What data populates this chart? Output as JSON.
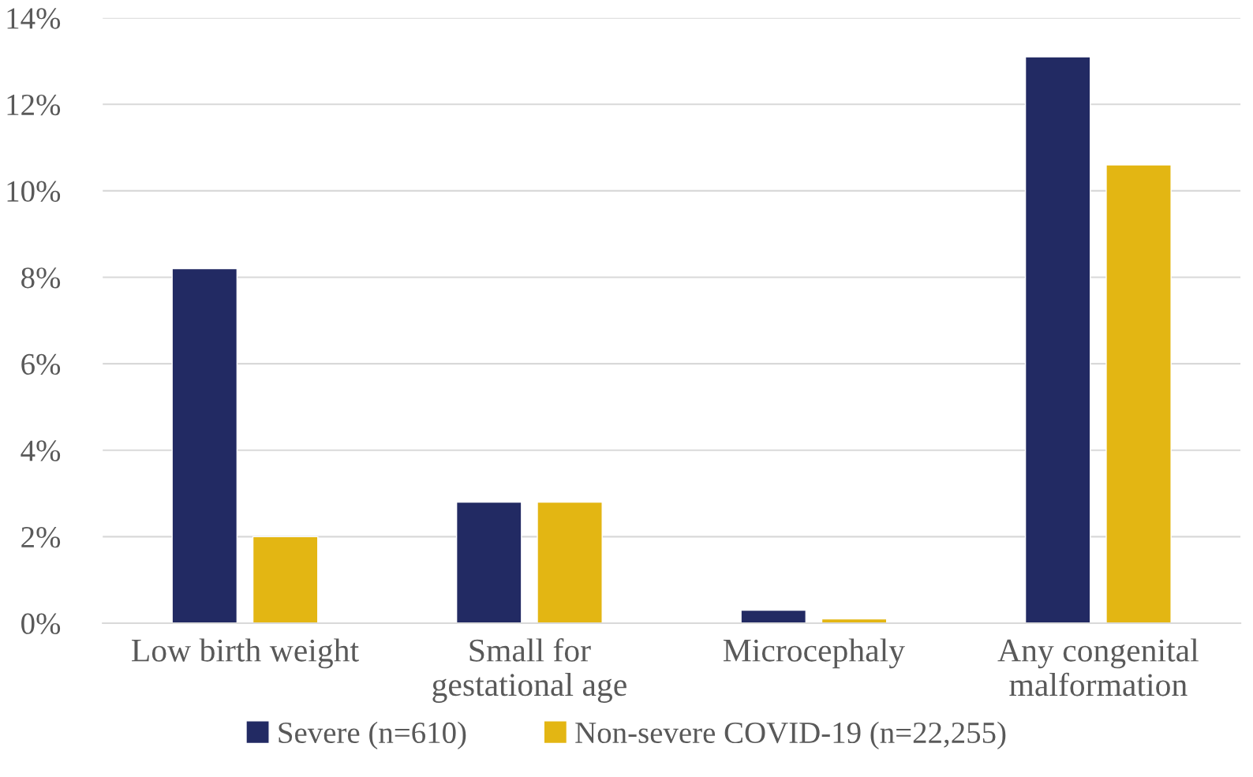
{
  "chart_data": {
    "type": "bar",
    "categories": [
      "Low birth weight",
      "Small for\ngestational age",
      "Microcephaly",
      "Any congenital\nmalformation"
    ],
    "series": [
      {
        "name": "Severe (n=610)",
        "color": "#222a63",
        "values": [
          8.2,
          2.8,
          0.3,
          13.1
        ]
      },
      {
        "name": "Non-severe COVID-19 (n=22,255)",
        "color": "#e3b613",
        "values": [
          2.0,
          2.8,
          0.1,
          10.6
        ]
      }
    ],
    "ylim": [
      0,
      14
    ],
    "yticks": [
      {
        "value": 0,
        "label": "0%"
      },
      {
        "value": 2,
        "label": "2%"
      },
      {
        "value": 4,
        "label": "4%"
      },
      {
        "value": 6,
        "label": "6%"
      },
      {
        "value": 8,
        "label": "8%"
      },
      {
        "value": 10,
        "label": "10%"
      },
      {
        "value": 12,
        "label": "12%"
      },
      {
        "value": 14,
        "label": "14%"
      }
    ],
    "grid": "y",
    "legend": "bottom"
  }
}
